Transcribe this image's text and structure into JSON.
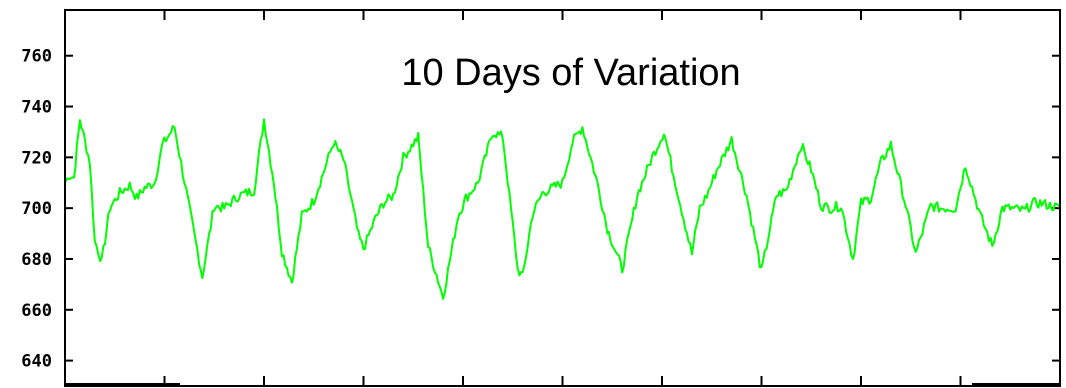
{
  "chart_data": {
    "type": "line",
    "title": "10 Days of Variation",
    "xlabel": "",
    "ylabel": "",
    "ylim": [
      630,
      778
    ],
    "xlim": [
      0,
      10
    ],
    "yticks": [
      640,
      660,
      680,
      700,
      720,
      740,
      760
    ],
    "ytick_labels": [
      "640",
      "660",
      "680",
      "700",
      "720",
      "740",
      "760"
    ],
    "xticks": [
      0,
      1,
      2,
      3,
      4,
      5,
      6,
      7,
      8,
      9,
      10
    ],
    "grid": false,
    "line_color": "#00ff00",
    "series": [
      {
        "x": [
          0.0,
          0.04,
          0.09,
          0.15,
          0.25,
          0.3,
          0.37,
          0.45,
          0.55,
          0.65,
          0.72,
          0.8,
          0.9,
          0.98,
          1.1,
          1.25,
          1.38,
          1.5,
          1.6,
          1.75,
          1.9,
          2.0,
          2.1,
          2.18,
          2.28,
          2.38,
          2.5,
          2.58,
          2.7,
          2.8,
          2.95,
          3.0,
          3.12,
          3.2,
          3.3,
          3.4,
          3.55,
          3.65,
          3.8,
          3.95,
          4.03,
          4.15,
          4.3,
          4.4,
          4.55,
          4.6,
          4.7,
          4.8,
          5.0,
          5.1,
          5.2,
          5.35,
          5.45,
          5.6,
          5.75,
          5.9,
          6.02,
          6.1,
          6.3,
          6.38,
          6.45,
          6.55,
          6.7,
          6.85,
          7.0,
          7.15,
          7.25,
          7.4,
          7.5,
          7.6,
          7.7,
          7.8,
          7.92,
          8.0,
          8.1,
          8.2,
          8.3,
          8.45,
          8.55,
          8.7,
          8.8,
          8.95,
          9.05,
          9.2,
          9.32,
          9.42,
          9.5,
          9.65,
          9.72,
          9.8,
          10.0
        ],
        "y": [
          710,
          713,
          712,
          735,
          718,
          687,
          679,
          700,
          706,
          709,
          704,
          708,
          710,
          725,
          732,
          700,
          673,
          701,
          700,
          705,
          707,
          735,
          710,
          683,
          671,
          697,
          703,
          712,
          726,
          719,
          689,
          684,
          696,
          702,
          705,
          720,
          728,
          685,
          665,
          697,
          704,
          710,
          730,
          728,
          676,
          673,
          698,
          706,
          710,
          726,
          732,
          710,
          692,
          676,
          705,
          720,
          730,
          716,
          682,
          700,
          705,
          715,
          727,
          705,
          675,
          705,
          707,
          725,
          715,
          701,
          700,
          701,
          680,
          702,
          704,
          718,
          725,
          701,
          682,
          701,
          700,
          700,
          717,
          697,
          685,
          700,
          700,
          699,
          702,
          702,
          700
        ]
      }
    ]
  }
}
